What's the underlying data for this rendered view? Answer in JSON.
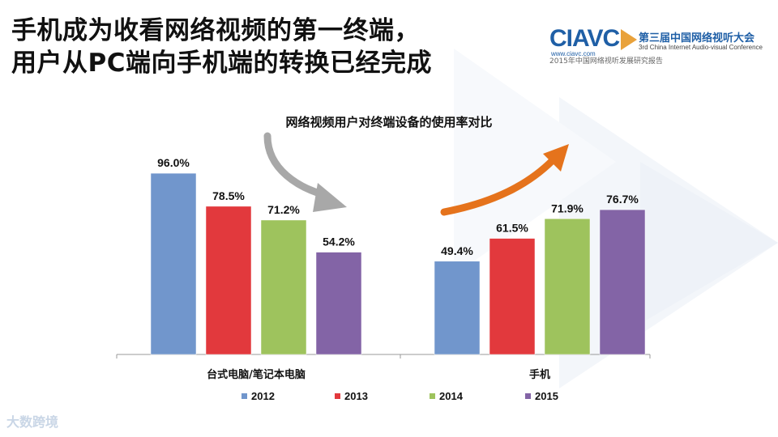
{
  "slide": {
    "headline_line1": "手机成为收看网络视频的第一终端，",
    "headline_line2": "用户从PC端向手机端的转换已经完成"
  },
  "logo": {
    "mark": "CIAVC",
    "url": "www.ciavc.com",
    "name_cn": "第三届中国网络视听大会",
    "name_en": "3rd China Internet Audio-visual Conference",
    "subtitle": "2015年中国网络视听发展研究报告"
  },
  "watermark": "大数跨境",
  "colors": {
    "series": [
      "#7196cc",
      "#e2393d",
      "#9ec35d",
      "#8364a6"
    ],
    "arrow_down": "#a8a8a8",
    "arrow_up": "#e5731c"
  },
  "chart_data": {
    "type": "bar",
    "title": "网络视频用户对终端设备的使用率对比",
    "categories": [
      "台式电脑/笔记本电脑",
      "手机"
    ],
    "series": [
      {
        "name": "2012",
        "values": [
          96.0,
          49.4
        ]
      },
      {
        "name": "2013",
        "values": [
          78.5,
          61.5
        ]
      },
      {
        "name": "2014",
        "values": [
          71.2,
          71.9
        ]
      },
      {
        "name": "2015",
        "values": [
          54.2,
          76.7
        ]
      }
    ],
    "unit": "%",
    "ylim": [
      0,
      100
    ],
    "grid": false,
    "legend_position": "bottom"
  }
}
